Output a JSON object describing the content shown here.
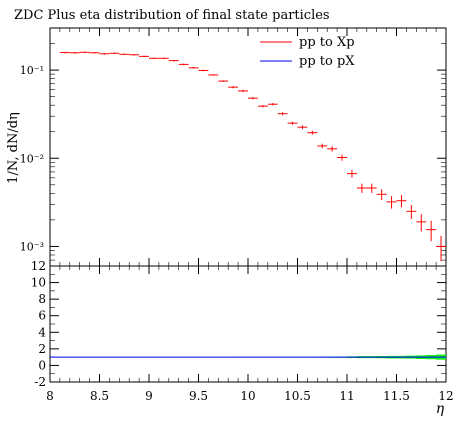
{
  "chart_data": {
    "type": "scatter",
    "title": "ZDC Plus eta distribution of final state particles",
    "ylabel": "1/N, dN/dη",
    "xlabel": "η",
    "xlim": [
      8,
      12
    ],
    "ylim": [
      0.0006,
      0.3
    ],
    "yscale": "log",
    "x_ticks": [
      "8",
      "8.5",
      "9",
      "9.5",
      "10",
      "10.5",
      "11",
      "11.5",
      "12"
    ],
    "y_ticks": [
      {
        "value": 0.1,
        "label": "10⁻¹"
      },
      {
        "value": 0.01,
        "label": "10⁻²"
      },
      {
        "value": 0.001,
        "label": "10⁻³"
      }
    ],
    "legend": {
      "placement": "top-right",
      "entries": [
        {
          "label": "pp to Xp",
          "color": "#ff0000"
        },
        {
          "label": "pp to pX",
          "color": "#0000ff"
        }
      ]
    },
    "series": [
      {
        "name": "pp to Xp",
        "color": "#ff0000",
        "bin_width": 0.1,
        "x": [
          8.15,
          8.25,
          8.35,
          8.45,
          8.55,
          8.65,
          8.75,
          8.85,
          8.95,
          9.05,
          9.15,
          9.25,
          9.35,
          9.45,
          9.55,
          9.65,
          9.75,
          9.85,
          9.95,
          10.05,
          10.15,
          10.25,
          10.35,
          10.45,
          10.55,
          10.65,
          10.75,
          10.85,
          10.95,
          11.05,
          11.15,
          11.25,
          11.35,
          11.45,
          11.55,
          11.65,
          11.75,
          11.85,
          11.95
        ],
        "y": [
          0.158,
          0.157,
          0.159,
          0.157,
          0.153,
          0.155,
          0.151,
          0.149,
          0.143,
          0.136,
          0.136,
          0.128,
          0.116,
          0.106,
          0.099,
          0.088,
          0.075,
          0.064,
          0.058,
          0.048,
          0.039,
          0.041,
          0.032,
          0.025,
          0.0225,
          0.0195,
          0.0138,
          0.0128,
          0.0102,
          0.0067,
          0.0046,
          0.0046,
          0.0039,
          0.0032,
          0.0033,
          0.0025,
          0.0019,
          0.00155,
          0.001
        ],
        "err_rel": [
          0.02,
          0.02,
          0.02,
          0.02,
          0.02,
          0.02,
          0.02,
          0.02,
          0.02,
          0.02,
          0.02,
          0.02,
          0.02,
          0.02,
          0.02,
          0.02,
          0.02,
          0.03,
          0.03,
          0.03,
          0.03,
          0.03,
          0.04,
          0.04,
          0.05,
          0.05,
          0.06,
          0.07,
          0.08,
          0.1,
          0.12,
          0.12,
          0.14,
          0.16,
          0.16,
          0.18,
          0.22,
          0.26,
          0.32
        ]
      }
    ],
    "ratio_panel": {
      "ylim": [
        -2,
        12
      ],
      "y_ticks": [
        "-2",
        "0",
        "2",
        "4",
        "6",
        "8",
        "10",
        "12"
      ],
      "reference": 1,
      "band_color": "#00ee00",
      "line_color": "#0000ff"
    }
  }
}
